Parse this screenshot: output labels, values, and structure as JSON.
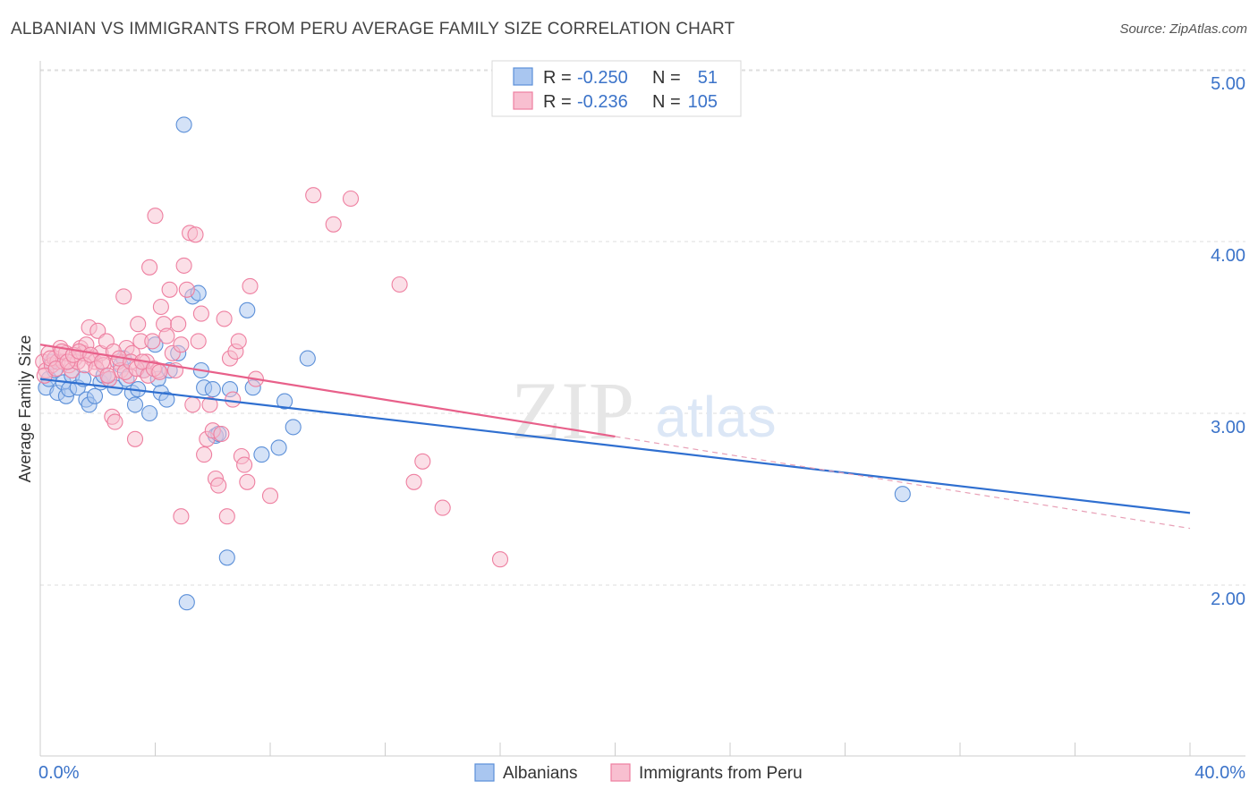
{
  "title": "ALBANIAN VS IMMIGRANTS FROM PERU AVERAGE FAMILY SIZE CORRELATION CHART",
  "source": "Source: ZipAtlas.com",
  "watermark": {
    "zip": "ZIP",
    "atlas": "atlas"
  },
  "legend_box": {
    "r_label": "R =",
    "n_label": "N =",
    "rows": [
      {
        "r": "-0.250",
        "n": "51",
        "color": "#8fb4ea"
      },
      {
        "r": "-0.236",
        "n": "105",
        "color": "#f4a8c0"
      }
    ]
  },
  "chart_data": {
    "type": "scatter",
    "title": "ALBANIAN VS IMMIGRANTS FROM PERU AVERAGE FAMILY SIZE CORRELATION CHART",
    "xlabel": "",
    "ylabel": "Average Family Size",
    "xlim": [
      0,
      40
    ],
    "ylim": [
      1.0,
      5.15
    ],
    "x_tick_labels": [
      "0.0%",
      "40.0%"
    ],
    "y_ticks": [
      2.0,
      3.0,
      4.0,
      5.0
    ],
    "y_tick_labels": [
      "2.00",
      "3.00",
      "4.00",
      "5.00"
    ],
    "grid": true,
    "legend_position": "bottom",
    "series": [
      {
        "name": "Albanians",
        "color": "#5b8fd8",
        "fill": "#a9c6f0",
        "r": -0.25,
        "n": 51,
        "trend": {
          "x": [
            0,
            40
          ],
          "y": [
            3.2,
            2.42
          ]
        },
        "points": [
          [
            0.2,
            3.15
          ],
          [
            0.3,
            3.2
          ],
          [
            0.5,
            3.25
          ],
          [
            0.6,
            3.12
          ],
          [
            0.8,
            3.18
          ],
          [
            0.9,
            3.1
          ],
          [
            1.0,
            3.14
          ],
          [
            1.1,
            3.22
          ],
          [
            1.3,
            3.15
          ],
          [
            1.5,
            3.2
          ],
          [
            1.6,
            3.08
          ],
          [
            1.7,
            3.05
          ],
          [
            1.9,
            3.1
          ],
          [
            2.1,
            3.18
          ],
          [
            2.2,
            3.22
          ],
          [
            2.4,
            3.2
          ],
          [
            2.6,
            3.15
          ],
          [
            2.8,
            3.28
          ],
          [
            3.0,
            3.2
          ],
          [
            3.2,
            3.12
          ],
          [
            3.3,
            3.05
          ],
          [
            3.4,
            3.14
          ],
          [
            3.6,
            3.25
          ],
          [
            3.8,
            3.0
          ],
          [
            4.0,
            3.4
          ],
          [
            4.1,
            3.2
          ],
          [
            4.2,
            3.12
          ],
          [
            4.4,
            3.08
          ],
          [
            4.5,
            3.25
          ],
          [
            4.8,
            3.35
          ],
          [
            5.0,
            4.68
          ],
          [
            5.1,
            1.9
          ],
          [
            5.3,
            3.68
          ],
          [
            5.5,
            3.7
          ],
          [
            5.6,
            3.25
          ],
          [
            5.7,
            3.15
          ],
          [
            6.0,
            3.14
          ],
          [
            6.1,
            2.87
          ],
          [
            6.2,
            2.88
          ],
          [
            6.5,
            2.16
          ],
          [
            6.6,
            3.14
          ],
          [
            7.2,
            3.6
          ],
          [
            7.4,
            3.15
          ],
          [
            7.7,
            2.76
          ],
          [
            8.3,
            2.8
          ],
          [
            8.5,
            3.07
          ],
          [
            8.8,
            2.92
          ],
          [
            9.3,
            3.32
          ],
          [
            30.0,
            2.53
          ],
          [
            0.4,
            3.3
          ],
          [
            2.9,
            3.32
          ]
        ]
      },
      {
        "name": "Immigrants from Peru",
        "color": "#ee7fa0",
        "fill": "#f8bfd0",
        "r": -0.236,
        "n": 105,
        "trend": {
          "x": [
            0,
            40
          ],
          "y": [
            3.4,
            2.33
          ]
        },
        "trend_solid_until": 20,
        "points": [
          [
            0.1,
            3.3
          ],
          [
            0.2,
            3.25
          ],
          [
            0.3,
            3.35
          ],
          [
            0.4,
            3.28
          ],
          [
            0.5,
            3.32
          ],
          [
            0.6,
            3.3
          ],
          [
            0.7,
            3.38
          ],
          [
            0.8,
            3.3
          ],
          [
            0.9,
            3.35
          ],
          [
            1.0,
            3.28
          ],
          [
            1.1,
            3.25
          ],
          [
            1.2,
            3.32
          ],
          [
            1.3,
            3.3
          ],
          [
            1.4,
            3.38
          ],
          [
            1.5,
            3.35
          ],
          [
            1.6,
            3.4
          ],
          [
            1.7,
            3.5
          ],
          [
            1.8,
            3.32
          ],
          [
            1.9,
            3.3
          ],
          [
            2.0,
            3.48
          ],
          [
            2.1,
            3.35
          ],
          [
            2.2,
            3.28
          ],
          [
            2.3,
            3.42
          ],
          [
            2.4,
            3.2
          ],
          [
            2.5,
            2.98
          ],
          [
            2.6,
            2.95
          ],
          [
            2.7,
            3.3
          ],
          [
            2.8,
            3.25
          ],
          [
            2.9,
            3.68
          ],
          [
            3.0,
            3.38
          ],
          [
            3.1,
            3.22
          ],
          [
            3.2,
            3.35
          ],
          [
            3.3,
            2.85
          ],
          [
            3.4,
            3.52
          ],
          [
            3.5,
            3.42
          ],
          [
            3.6,
            3.25
          ],
          [
            3.7,
            3.3
          ],
          [
            3.8,
            3.85
          ],
          [
            3.9,
            3.42
          ],
          [
            4.0,
            4.15
          ],
          [
            4.1,
            3.25
          ],
          [
            4.2,
            3.62
          ],
          [
            4.3,
            3.52
          ],
          [
            4.4,
            3.45
          ],
          [
            4.5,
            3.72
          ],
          [
            4.6,
            3.35
          ],
          [
            4.7,
            3.25
          ],
          [
            4.8,
            3.52
          ],
          [
            4.9,
            3.4
          ],
          [
            5.0,
            3.86
          ],
          [
            5.1,
            3.72
          ],
          [
            5.2,
            4.05
          ],
          [
            5.3,
            3.05
          ],
          [
            5.4,
            4.04
          ],
          [
            5.5,
            3.42
          ],
          [
            5.6,
            3.58
          ],
          [
            5.7,
            2.76
          ],
          [
            5.8,
            2.85
          ],
          [
            5.9,
            3.05
          ],
          [
            6.0,
            2.9
          ],
          [
            6.1,
            2.62
          ],
          [
            6.2,
            2.58
          ],
          [
            6.3,
            2.88
          ],
          [
            6.4,
            3.55
          ],
          [
            6.5,
            2.4
          ],
          [
            6.6,
            3.32
          ],
          [
            6.7,
            3.08
          ],
          [
            6.8,
            3.36
          ],
          [
            6.9,
            3.42
          ],
          [
            7.0,
            2.75
          ],
          [
            7.1,
            2.7
          ],
          [
            7.2,
            2.6
          ],
          [
            7.3,
            3.74
          ],
          [
            7.5,
            3.2
          ],
          [
            8.0,
            2.52
          ],
          [
            9.5,
            4.27
          ],
          [
            10.2,
            4.1
          ],
          [
            10.8,
            4.25
          ],
          [
            12.5,
            3.75
          ],
          [
            13.0,
            2.6
          ],
          [
            13.3,
            2.72
          ],
          [
            14.0,
            2.45
          ],
          [
            16.0,
            2.15
          ],
          [
            4.9,
            2.4
          ],
          [
            0.15,
            3.22
          ],
          [
            0.35,
            3.32
          ],
          [
            0.55,
            3.26
          ],
          [
            0.75,
            3.36
          ],
          [
            0.95,
            3.3
          ],
          [
            1.15,
            3.34
          ],
          [
            1.35,
            3.36
          ],
          [
            1.55,
            3.28
          ],
          [
            1.75,
            3.34
          ],
          [
            1.95,
            3.26
          ],
          [
            2.15,
            3.3
          ],
          [
            2.35,
            3.22
          ],
          [
            2.55,
            3.36
          ],
          [
            2.75,
            3.32
          ],
          [
            2.95,
            3.24
          ],
          [
            3.15,
            3.3
          ],
          [
            3.35,
            3.26
          ],
          [
            3.55,
            3.3
          ],
          [
            3.75,
            3.22
          ],
          [
            3.95,
            3.26
          ],
          [
            4.15,
            3.24
          ]
        ]
      }
    ]
  }
}
